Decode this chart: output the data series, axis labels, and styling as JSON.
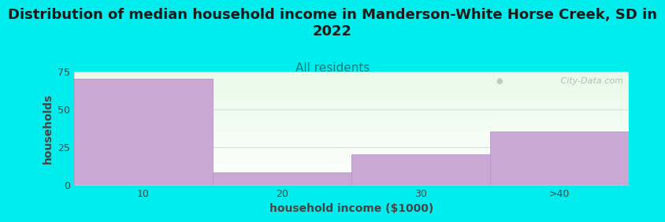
{
  "title": "Distribution of median household income in Manderson-White Horse Creek, SD in\n2022",
  "subtitle": "All residents",
  "xlabel": "household income ($1000)",
  "ylabel": "households",
  "categories": [
    "10",
    "20",
    "30",
    ">40"
  ],
  "values": [
    70,
    8,
    20,
    35
  ],
  "bar_color": "#c9a8d4",
  "bar_edge_color": "#b898c8",
  "background_color": "#00eded",
  "title_color": "#1a1a1a",
  "subtitle_color": "#008080",
  "axis_label_color": "#444444",
  "tick_color": "#444444",
  "grid_color": "#e8d8e8",
  "ylim": [
    0,
    75
  ],
  "yticks": [
    0,
    25,
    50,
    75
  ],
  "watermark": " City-Data.com",
  "watermark_color": "#aaaaaa",
  "title_fontsize": 13,
  "subtitle_fontsize": 11,
  "axis_label_fontsize": 10,
  "tick_fontsize": 9,
  "plot_bg_green": "#e8f5e8",
  "plot_bg_white": "#ffffff"
}
